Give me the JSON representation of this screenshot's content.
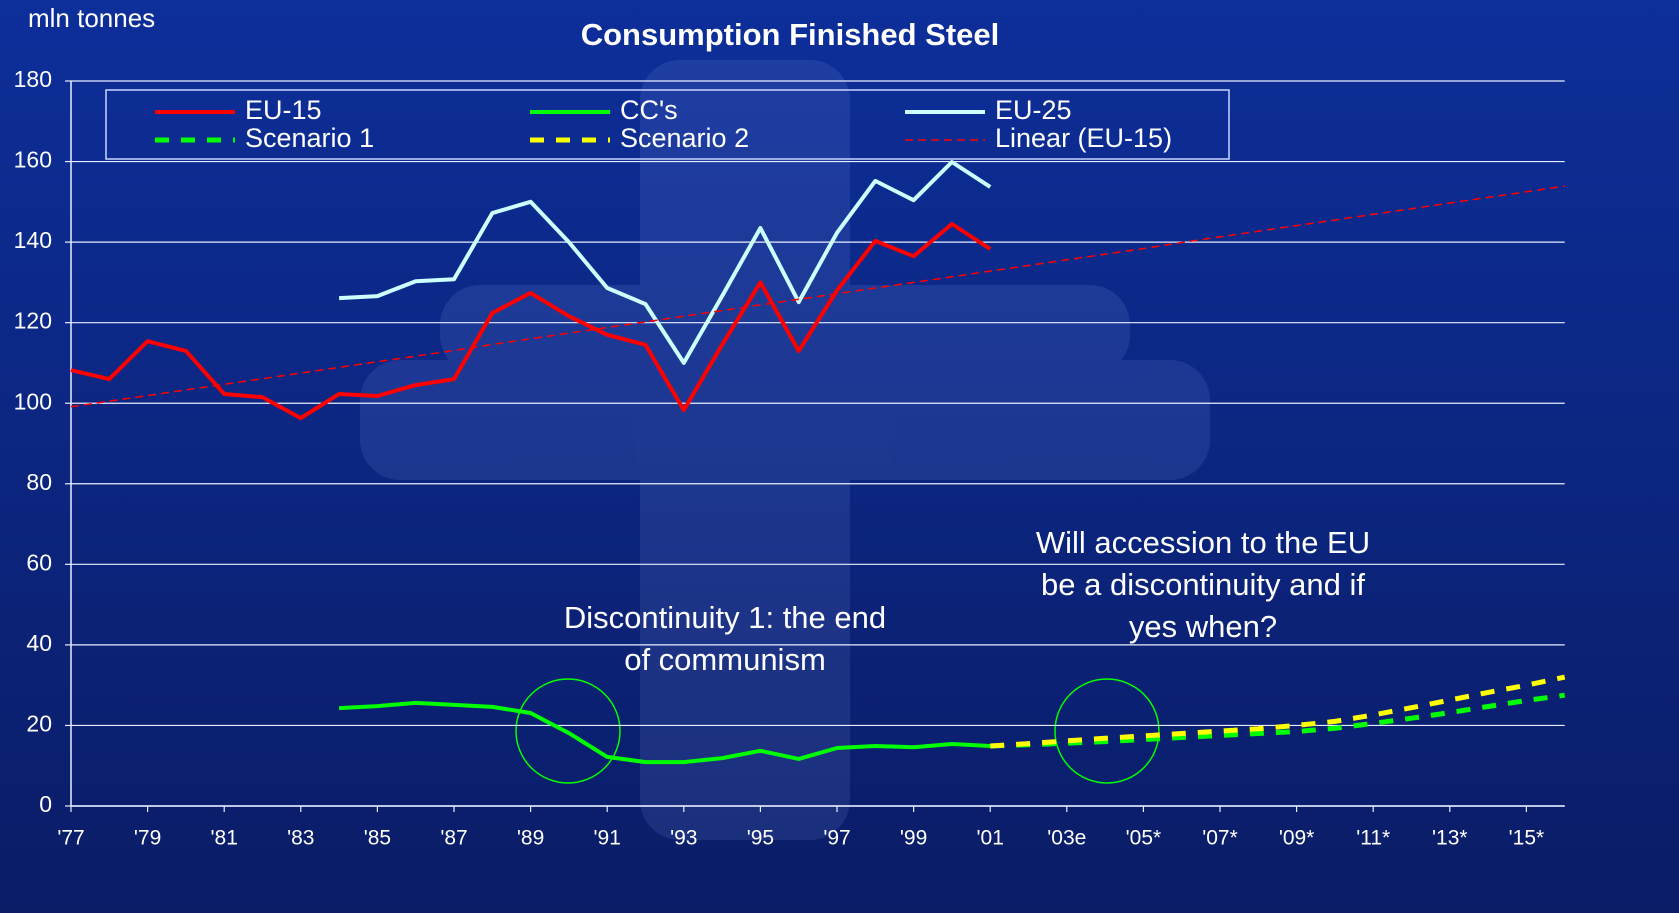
{
  "chart_data": {
    "type": "line",
    "title": "Consumption Finished Steel",
    "y_label": "mln tonnes",
    "categories": [
      "'77",
      null,
      "'79",
      null,
      "'81",
      null,
      "'83",
      null,
      "'85",
      null,
      "'87",
      null,
      "'89",
      null,
      "'91",
      null,
      "'93",
      null,
      "'95",
      null,
      "'97",
      null,
      "'99",
      null,
      "'01",
      null,
      "'03e",
      null,
      "'05*",
      null,
      "'07*",
      null,
      "'09*",
      null,
      "'11*",
      null,
      "'13*",
      null,
      "'15*",
      null
    ],
    "ylim": [
      0,
      180
    ],
    "yticks": [
      0,
      20,
      40,
      60,
      80,
      100,
      120,
      140,
      160,
      180
    ],
    "grid": true,
    "legend": "top",
    "series": [
      {
        "name": "EU-15",
        "color": "#ff0000",
        "style": "solid",
        "values": [
          108.2,
          106,
          115.4,
          113,
          102.3,
          101.5,
          96.3,
          102.3,
          101.8,
          104.5,
          106,
          122.4,
          127.4,
          121.6,
          117,
          114.5,
          98.3,
          114.5,
          130,
          113,
          128,
          140.3,
          136.5,
          144.5,
          138.3,
          null,
          null,
          null,
          null,
          null,
          null,
          null,
          null,
          null,
          null,
          null,
          null,
          null,
          null,
          null
        ]
      },
      {
        "name": "CC's",
        "color": "#00ff00",
        "style": "solid",
        "values": [
          null,
          null,
          null,
          null,
          null,
          null,
          null,
          24.3,
          24.8,
          25.6,
          25.1,
          24.6,
          23.1,
          18.1,
          12.2,
          10.9,
          10.9,
          11.9,
          13.7,
          11.7,
          14.4,
          14.9,
          14.6,
          15.4,
          14.9,
          null,
          null,
          null,
          null,
          null,
          null,
          null,
          null,
          null,
          null,
          null,
          null,
          null,
          null,
          null
        ]
      },
      {
        "name": "EU-25",
        "color": "#ccffff",
        "style": "solid",
        "values": [
          null,
          null,
          null,
          null,
          null,
          null,
          null,
          126.1,
          126.6,
          130.3,
          130.8,
          147.2,
          150,
          140,
          128.6,
          124.6,
          110,
          126.6,
          143.5,
          125.1,
          142.3,
          155.2,
          150.4,
          159.9,
          153.7,
          null,
          null,
          null,
          null,
          null,
          null,
          null,
          null,
          null,
          null,
          null,
          null,
          null,
          null,
          null
        ]
      },
      {
        "name": "Scenario 1",
        "color": "#00ff00",
        "style": "dashed",
        "values": [
          null,
          null,
          null,
          null,
          null,
          null,
          null,
          null,
          null,
          null,
          null,
          null,
          null,
          null,
          null,
          null,
          null,
          null,
          null,
          null,
          null,
          null,
          null,
          null,
          14.9,
          15.2,
          15.6,
          16,
          16.5,
          17,
          17.5,
          18,
          18.5,
          19.3,
          20.5,
          21.8,
          23.2,
          24.7,
          26.2,
          27.5
        ]
      },
      {
        "name": "Scenario 2",
        "color": "#ffff00",
        "style": "dashed",
        "values": [
          null,
          null,
          null,
          null,
          null,
          null,
          null,
          null,
          null,
          null,
          null,
          null,
          null,
          null,
          null,
          null,
          null,
          null,
          null,
          null,
          null,
          null,
          null,
          null,
          14.9,
          15.5,
          16.2,
          16.8,
          17.4,
          18,
          18.6,
          19.2,
          20,
          21,
          22.6,
          24.4,
          26.3,
          28.2,
          30,
          32
        ]
      },
      {
        "name": "Linear (EU-15)",
        "color": "#ff0000",
        "style": "thin-dashed",
        "values": [
          99.1,
          100.5,
          101.9,
          103.3,
          104.7,
          106.1,
          107.5,
          108.9,
          110.3,
          111.7,
          113.1,
          114.6,
          116.0,
          117.4,
          118.8,
          120.2,
          121.6,
          123.0,
          124.4,
          125.8,
          127.2,
          128.6,
          130.0,
          131.4,
          132.8,
          134.2,
          135.6,
          137.0,
          138.4,
          139.9,
          141.3,
          142.7,
          144.1,
          145.5,
          146.9,
          148.3,
          149.7,
          151.1,
          152.5,
          153.9
        ]
      }
    ],
    "annotations": [
      [
        "Discontinuity 1: the end",
        "of communism"
      ],
      [
        "Will accession to the EU",
        "be a discontinuity and if",
        "yes when?"
      ]
    ]
  }
}
